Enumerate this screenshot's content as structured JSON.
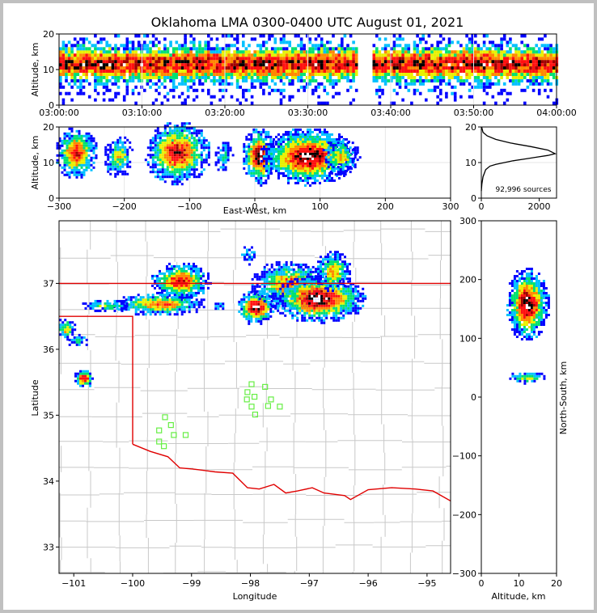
{
  "title": "Oklahoma LMA 0300-0400 UTC August 01, 2021",
  "colors": {
    "border_red": "#e00000",
    "county": "#c8c8c8",
    "station_green": "#66ee44",
    "density_low": "#0000ff",
    "density_high": "#ff0000",
    "density_peak": "#ffffff"
  },
  "chart_data": [
    {
      "type": "heatmap",
      "id": "time_height",
      "title": "",
      "xlabel": "",
      "ylabel": "Altitude, km",
      "xlim": [
        "03:00:00",
        "04:00:00"
      ],
      "ylim": [
        0,
        20
      ],
      "xticks": [
        "03:00:00",
        "03:10:00",
        "03:20:00",
        "03:30:00",
        "03:40:00",
        "03:50:00",
        "04:00:00"
      ],
      "yticks": [
        "0",
        "10",
        "20"
      ],
      "grid": true,
      "gap": [
        "03:36:00",
        "03:37:30"
      ],
      "core_altitude_km": 12
    },
    {
      "type": "heatmap",
      "id": "ew_height",
      "xlabel": "East-West, km",
      "ylabel": "Altitude, km",
      "xlim": [
        -300,
        300
      ],
      "ylim": [
        0,
        20
      ],
      "xticks": [
        "−300",
        "−200",
        "−100",
        "0",
        "100",
        "200",
        "300"
      ],
      "yticks": [
        "0",
        "10",
        "20"
      ],
      "grid": true,
      "cells": [
        {
          "x": -275,
          "z": 13,
          "w": 22,
          "h": 10,
          "peak": 0.85
        },
        {
          "x": -210,
          "z": 12,
          "w": 16,
          "h": 8,
          "peak": 0.55
        },
        {
          "x": -120,
          "z": 13,
          "w": 35,
          "h": 12,
          "peak": 0.9
        },
        {
          "x": -50,
          "z": 12,
          "w": 10,
          "h": 6,
          "peak": 0.35
        },
        {
          "x": 5,
          "z": 12,
          "w": 18,
          "h": 11,
          "peak": 1.0
        },
        {
          "x": 80,
          "z": 12,
          "w": 50,
          "h": 11,
          "peak": 1.0
        },
        {
          "x": 130,
          "z": 12,
          "w": 20,
          "h": 7,
          "peak": 0.6
        }
      ]
    },
    {
      "type": "line",
      "id": "altitude_histogram",
      "xlim": [
        0,
        2600
      ],
      "ylim": [
        0,
        20
      ],
      "xticks": [
        "0",
        "2000"
      ],
      "yticks": [
        "0",
        "10",
        "20"
      ],
      "annotation": "92,996 sources",
      "x": [
        0,
        20,
        60,
        150,
        300,
        500,
        800,
        1100,
        1500,
        1900,
        2300,
        2550,
        2300,
        1700,
        1000,
        500,
        200,
        60,
        10
      ],
      "y": [
        2,
        4,
        6,
        8,
        9,
        9.5,
        10,
        10.5,
        11,
        11.5,
        12,
        12.5,
        13.5,
        14.5,
        15.5,
        16.5,
        17.5,
        18.5,
        20
      ]
    },
    {
      "type": "heatmap",
      "id": "plan_view",
      "xlabel": "Longitude",
      "ylabel": "Latitude",
      "xlim": [
        -101.25,
        -94.6
      ],
      "ylim": [
        32.6,
        37.95
      ],
      "xticks": [
        "−101",
        "−100",
        "−99",
        "−98",
        "−97",
        "−96",
        "−95"
      ],
      "yticks": [
        "33",
        "34",
        "35",
        "36",
        "37"
      ],
      "cells": [
        {
          "lon": -99.2,
          "lat": 37.05,
          "rx": 0.35,
          "ry": 0.2,
          "peak": 0.85
        },
        {
          "lon": -99.55,
          "lat": 36.7,
          "rx": 0.55,
          "ry": 0.12,
          "peak": 0.75
        },
        {
          "lon": -100.45,
          "lat": 36.68,
          "rx": 0.3,
          "ry": 0.07,
          "peak": 0.45
        },
        {
          "lon": -98.57,
          "lat": 36.67,
          "rx": 0.08,
          "ry": 0.05,
          "peak": 0.35
        },
        {
          "lon": -98.05,
          "lat": 37.45,
          "rx": 0.1,
          "ry": 0.1,
          "peak": 0.3
        },
        {
          "lon": -97.92,
          "lat": 36.65,
          "rx": 0.22,
          "ry": 0.18,
          "peak": 1.0
        },
        {
          "lon": -97.35,
          "lat": 37.0,
          "rx": 0.45,
          "ry": 0.25,
          "peak": 0.7
        },
        {
          "lon": -96.85,
          "lat": 36.78,
          "rx": 0.55,
          "ry": 0.25,
          "peak": 1.0
        },
        {
          "lon": -96.62,
          "lat": 37.2,
          "rx": 0.22,
          "ry": 0.22,
          "peak": 0.6
        },
        {
          "lon": -101.15,
          "lat": 36.32,
          "rx": 0.12,
          "ry": 0.12,
          "peak": 0.6
        },
        {
          "lon": -100.95,
          "lat": 36.15,
          "rx": 0.12,
          "ry": 0.08,
          "peak": 0.4
        },
        {
          "lon": -100.85,
          "lat": 35.57,
          "rx": 0.12,
          "ry": 0.1,
          "peak": 0.9
        }
      ],
      "stations": [
        {
          "lon": -99.45,
          "lat": 34.97
        },
        {
          "lon": -99.35,
          "lat": 34.85
        },
        {
          "lon": -99.55,
          "lat": 34.77
        },
        {
          "lon": -99.3,
          "lat": 34.7
        },
        {
          "lon": -99.1,
          "lat": 34.7
        },
        {
          "lon": -99.55,
          "lat": 34.6
        },
        {
          "lon": -99.47,
          "lat": 34.53
        },
        {
          "lon": -97.98,
          "lat": 35.47
        },
        {
          "lon": -97.75,
          "lat": 35.43
        },
        {
          "lon": -98.05,
          "lat": 35.35
        },
        {
          "lon": -97.93,
          "lat": 35.28
        },
        {
          "lon": -98.06,
          "lat": 35.24
        },
        {
          "lon": -97.65,
          "lat": 35.24
        },
        {
          "lon": -97.98,
          "lat": 35.13
        },
        {
          "lon": -97.7,
          "lat": 35.14
        },
        {
          "lon": -97.5,
          "lat": 35.13
        },
        {
          "lon": -97.92,
          "lat": 35.01
        }
      ],
      "border_lines": [
        {
          "name": "kansas-border",
          "points": [
            [
              -101.25,
              37.0
            ],
            [
              -94.6,
              37.0
            ]
          ]
        },
        {
          "name": "panhandle-border",
          "points": [
            [
              -101.25,
              36.5
            ],
            [
              -100.0,
              36.5
            ],
            [
              -100.0,
              34.56
            ]
          ]
        },
        {
          "name": "red-river",
          "points": [
            [
              -100.0,
              34.56
            ],
            [
              -99.7,
              34.45
            ],
            [
              -99.4,
              34.37
            ],
            [
              -99.2,
              34.2
            ],
            [
              -98.95,
              34.18
            ],
            [
              -98.6,
              34.14
            ],
            [
              -98.3,
              34.12
            ],
            [
              -98.05,
              33.9
            ],
            [
              -97.85,
              33.88
            ],
            [
              -97.6,
              33.95
            ],
            [
              -97.4,
              33.82
            ],
            [
              -97.2,
              33.85
            ],
            [
              -96.95,
              33.9
            ],
            [
              -96.75,
              33.82
            ],
            [
              -96.4,
              33.78
            ],
            [
              -96.3,
              33.72
            ],
            [
              -96.0,
              33.87
            ],
            [
              -95.6,
              33.9
            ],
            [
              -95.2,
              33.88
            ],
            [
              -94.9,
              33.85
            ],
            [
              -94.6,
              33.7
            ]
          ]
        }
      ]
    },
    {
      "type": "heatmap",
      "id": "ns_height",
      "xlabel": "Altitude, km",
      "ylabel": "North-South, km",
      "xlim": [
        0,
        20
      ],
      "ylim": [
        -300,
        300
      ],
      "xticks": [
        "0",
        "10",
        "20"
      ],
      "yticks": [
        "300",
        "200",
        "100",
        "0",
        "−100",
        "−200",
        "−300"
      ],
      "cells": [
        {
          "z": 12,
          "y": 160,
          "w": 8,
          "h": 60,
          "peak": 1.0
        },
        {
          "z": 12,
          "y": 35,
          "w": 7,
          "h": 10,
          "peak": 0.55
        }
      ]
    }
  ]
}
